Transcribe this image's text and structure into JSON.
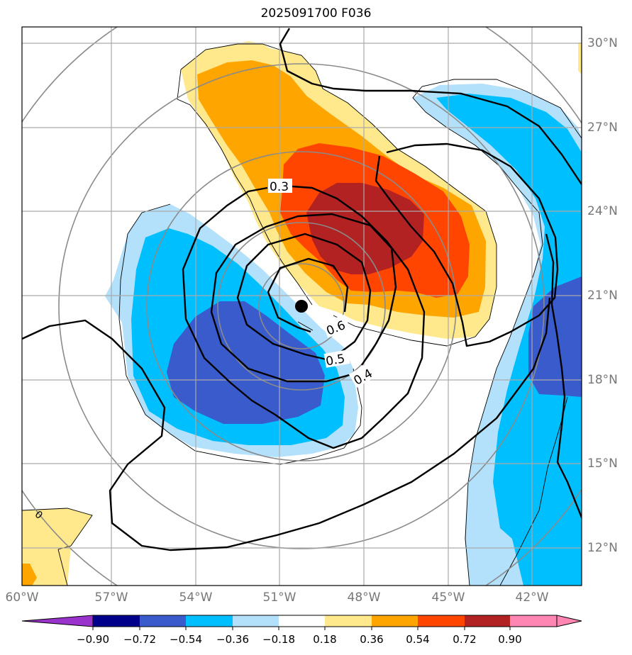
{
  "title": "2025091700 F036",
  "map": {
    "lon_labels": [
      "60°W",
      "57°W",
      "54°W",
      "51°W",
      "48°W",
      "45°W",
      "42°W"
    ],
    "lat_labels": [
      "30°N",
      "27°N",
      "24°N",
      "21°N",
      "18°N",
      "15°N",
      "12°N"
    ],
    "lon_range": [
      -60,
      -40
    ],
    "lat_range": [
      10.5,
      31
    ],
    "gridlines": true,
    "storm_center": {
      "lon": -50.7,
      "lat": 20.6
    },
    "contour_labels": [
      "0.3",
      "0.6",
      "0.5",
      "0.4",
      "0"
    ]
  },
  "colorbar": {
    "ticks": [
      "−0.90",
      "−0.72",
      "−0.54",
      "−0.36",
      "−0.18",
      "0.18",
      "0.36",
      "0.54",
      "0.72",
      "0.90"
    ],
    "colors": [
      "#9933cc",
      "#00008b",
      "#3a5bcc",
      "#00bfff",
      "#b3e1fb",
      "#ffffff",
      "#ffe98c",
      "#ffa500",
      "#ff4500",
      "#b22222",
      "#ff86b3"
    ]
  }
}
